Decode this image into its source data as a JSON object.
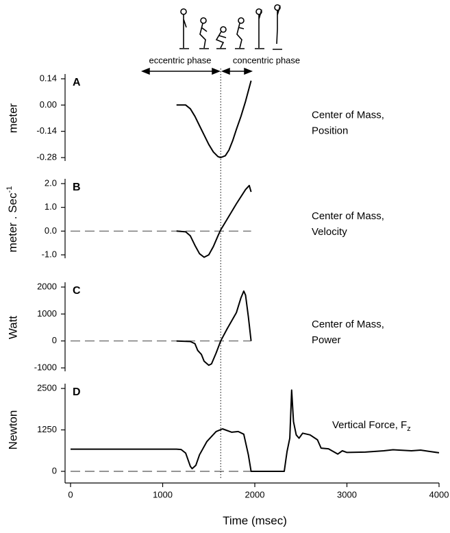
{
  "phase_labels": [
    "eccentric phase",
    "concentric phase"
  ],
  "phase_boundary": 1630,
  "chart_data": [
    {
      "type": "line",
      "panel_label": "A",
      "ylabel": "meter",
      "annotation": [
        "Center of Mass,",
        "Position"
      ],
      "color": "#000000",
      "xlim": [
        0,
        4000
      ],
      "ylim": [
        -0.28,
        0.14
      ],
      "yticks": [
        {
          "value": 0.14,
          "label": "0.14"
        },
        {
          "value": 0,
          "label": "0.00"
        },
        {
          "value": -0.14,
          "label": "-0.14"
        },
        {
          "value": -0.28,
          "label": "-0.28"
        }
      ],
      "x": [
        1150,
        1250,
        1300,
        1350,
        1400,
        1450,
        1500,
        1550,
        1600,
        1630,
        1680,
        1720,
        1760,
        1800,
        1850,
        1900,
        1960
      ],
      "values": [
        0,
        0,
        -0.02,
        -0.06,
        -0.11,
        -0.16,
        -0.21,
        -0.25,
        -0.275,
        -0.28,
        -0.27,
        -0.24,
        -0.19,
        -0.13,
        -0.06,
        0.02,
        0.13
      ]
    },
    {
      "type": "line",
      "panel_label": "B",
      "ylabel": {
        "text": "meter . Sec",
        "superscript": "-1"
      },
      "annotation": [
        "Center of Mass,",
        "Velocity"
      ],
      "color": "#000000",
      "xlim": [
        0,
        4000
      ],
      "ylim": [
        -1.0,
        2.0
      ],
      "yticks": [
        {
          "value": 2,
          "label": "2.0"
        },
        {
          "value": 1,
          "label": "1.0"
        },
        {
          "value": 0,
          "label": "0.0"
        },
        {
          "value": -1,
          "label": "-1.0"
        }
      ],
      "x": [
        1150,
        1250,
        1300,
        1350,
        1400,
        1450,
        1500,
        1550,
        1600,
        1630,
        1700,
        1800,
        1900,
        1940,
        1960
      ],
      "values": [
        0,
        -0.03,
        -0.2,
        -0.6,
        -0.95,
        -1.1,
        -1.0,
        -0.65,
        -0.2,
        0.05,
        0.5,
        1.15,
        1.75,
        1.92,
        1.65
      ]
    },
    {
      "type": "line",
      "panel_label": "C",
      "ylabel": "Watt",
      "annotation": [
        "Center of Mass,",
        "Power"
      ],
      "color": "#000000",
      "xlim": [
        0,
        4000
      ],
      "ylim": [
        -1000,
        2000
      ],
      "yticks": [
        2000,
        1000,
        0,
        -1000
      ],
      "x": [
        1150,
        1300,
        1350,
        1380,
        1420,
        1450,
        1500,
        1530,
        1580,
        1630,
        1700,
        1800,
        1850,
        1880,
        1900,
        1930,
        1960
      ],
      "values": [
        0,
        -20,
        -100,
        -350,
        -500,
        -750,
        -900,
        -850,
        -450,
        0,
        450,
        1050,
        1600,
        1850,
        1700,
        900,
        0
      ]
    },
    {
      "type": "line",
      "panel_label": "D",
      "ylabel": "Newton",
      "annotation": {
        "text": "Vertical Force, F",
        "subscript": "z"
      },
      "color": "#000000",
      "xlim": [
        0,
        4000
      ],
      "ylim": [
        0,
        2500
      ],
      "yticks": [
        2500,
        1250,
        0
      ],
      "xticks": [
        0,
        1000,
        2000,
        3000,
        4000
      ],
      "xlabel": "Time  (msec)",
      "x": [
        0,
        1150,
        1200,
        1250,
        1300,
        1320,
        1360,
        1400,
        1480,
        1580,
        1650,
        1750,
        1820,
        1880,
        1930,
        1960,
        2320,
        2340,
        2350,
        2380,
        2400,
        2420,
        2450,
        2480,
        2520,
        2600,
        2680,
        2720,
        2800,
        2900,
        2950,
        3000,
        3200,
        3400,
        3500,
        3700,
        3800,
        3900,
        4000
      ],
      "values": [
        670,
        670,
        660,
        550,
        150,
        80,
        180,
        500,
        900,
        1200,
        1280,
        1180,
        1200,
        1120,
        500,
        0,
        0,
        400,
        600,
        1000,
        2450,
        1500,
        1100,
        1000,
        1150,
        1100,
        950,
        700,
        680,
        520,
        620,
        570,
        580,
        620,
        650,
        620,
        640,
        600,
        560
      ]
    }
  ]
}
